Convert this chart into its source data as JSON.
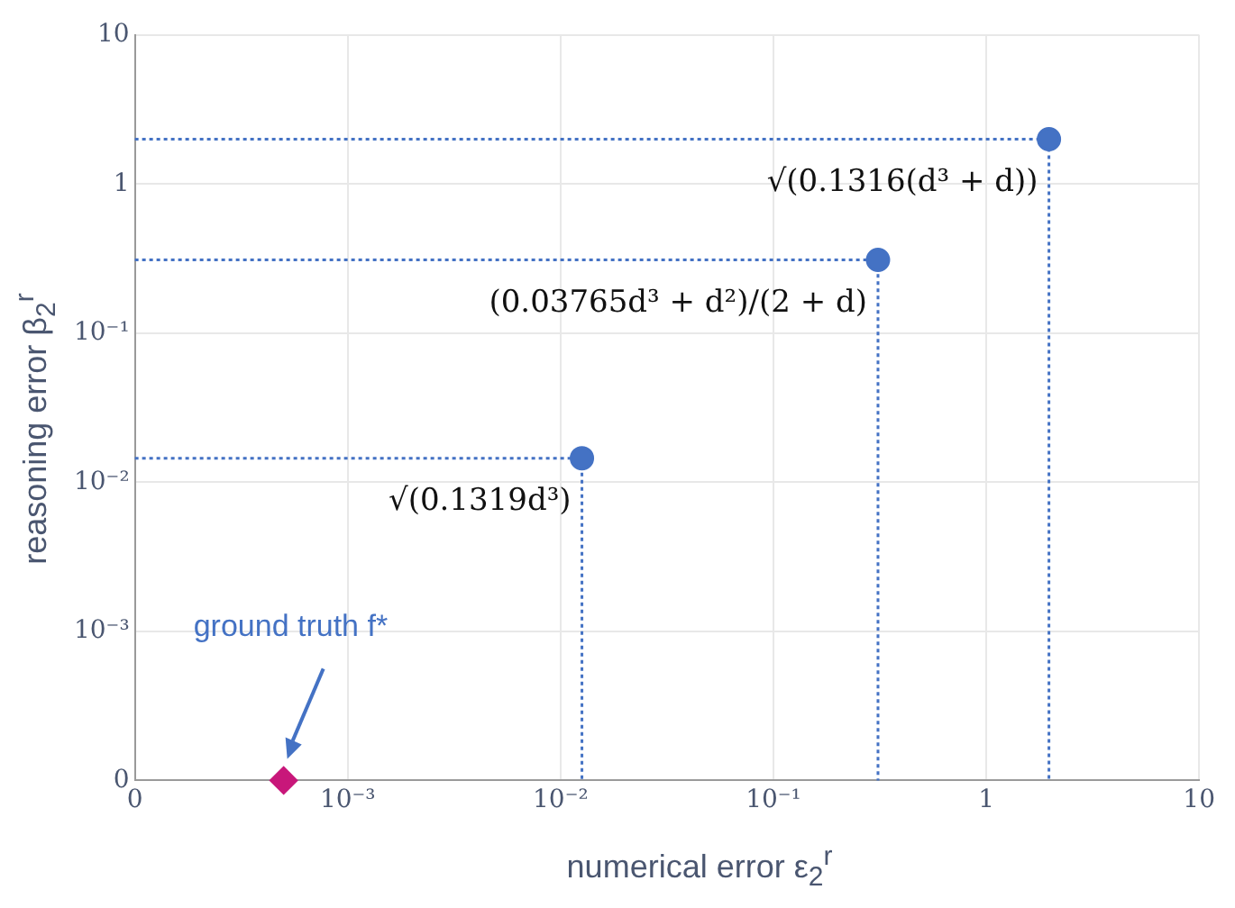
{
  "chart_data": {
    "type": "scatter",
    "xlabel": "numerical error ε$_{2}$$^{r}$",
    "ylabel": "reasoning error β$_{2}$$^{r}$",
    "log": "xy",
    "xlim": [
      0.0001,
      10
    ],
    "ylim": [
      0.0001,
      10
    ],
    "xticks": [
      {
        "value": 0.0001,
        "label": "0"
      },
      {
        "value": 0.001,
        "label": "10⁻³"
      },
      {
        "value": 0.01,
        "label": "10⁻²"
      },
      {
        "value": 0.1,
        "label": "10⁻¹"
      },
      1,
      10
    ],
    "yticks": [
      {
        "value": 0.0001,
        "label": "0"
      },
      {
        "value": 0.001,
        "label": "10⁻³"
      },
      {
        "value": 0.01,
        "label": "10⁻²"
      },
      {
        "value": 0.1,
        "label": "10⁻¹"
      },
      1,
      10
    ],
    "grid": true,
    "legend": false,
    "series": [
      {
        "type": "line",
        "color": "#4472c4",
        "line_style": "dotted",
        "marker": "none",
        "x": [
          0.0001,
          0.0126,
          0.0126
        ],
        "values": [
          0.0145,
          0.0145,
          0.0001
        ]
      },
      {
        "type": "line",
        "color": "#4472c4",
        "line_style": "dotted",
        "marker": "none",
        "x": [
          0.0001,
          0.31,
          0.31
        ],
        "values": [
          0.31,
          0.31,
          0.0001
        ]
      },
      {
        "type": "line",
        "color": "#4472c4",
        "line_style": "dotted",
        "marker": "none",
        "x": [
          0.0001,
          1.97,
          1.97
        ],
        "values": [
          2.0,
          2.0,
          0.0001
        ]
      },
      {
        "color": "#4472c4",
        "marker": "circle",
        "x": [
          0.0126,
          0.31,
          1.97
        ],
        "values": [
          0.0145,
          0.31,
          2.0
        ]
      },
      {
        "color": "#c8177a",
        "marker": "diamond",
        "x": [
          0.0005
        ],
        "values": [
          0.0001
        ]
      }
    ],
    "annotations": [
      {
        "text": "√(0.1319d³)",
        "x": 0.0126,
        "y": 0.0145
      },
      {
        "text": "(0.03765d³ + d²)/(2 + d)",
        "x": 0.31,
        "y": 0.31
      },
      {
        "text": "√(0.1316(d³ + d))",
        "x": 1.97,
        "y": 2.0
      },
      "ground truth f*"
    ]
  }
}
